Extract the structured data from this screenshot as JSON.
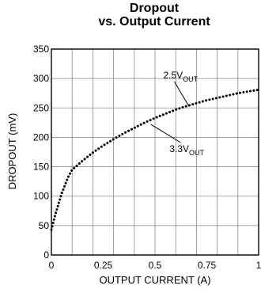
{
  "chart_data": {
    "type": "line",
    "title_line1": "Dropout",
    "title_line2": "vs. Output Current",
    "xlabel": "OUTPUT CURRENT (A)",
    "ylabel": "DROPOUT (mV)",
    "xlim": [
      0,
      1
    ],
    "ylim": [
      0,
      350
    ],
    "xticks": [
      0,
      0.25,
      0.5,
      0.75,
      1
    ],
    "xtick_labels": [
      "0",
      "0.25",
      "0.5",
      "0.75",
      "1"
    ],
    "yticks": [
      0,
      50,
      100,
      150,
      200,
      250,
      300,
      350
    ],
    "ytick_labels": [
      "0",
      "50",
      "100",
      "150",
      "200",
      "250",
      "300",
      "350"
    ],
    "grid": true,
    "x_minor_divisions": 10,
    "series": [
      {
        "name": "",
        "style": "dotted",
        "x": [
          0,
          0.02,
          0.05,
          0.08,
          0.1,
          0.15,
          0.2,
          0.25,
          0.3,
          0.35,
          0.4,
          0.45,
          0.5,
          0.55,
          0.6,
          0.65,
          0.7,
          0.75,
          0.8,
          0.85,
          0.9,
          0.95,
          1.0
        ],
        "y": [
          43,
          70,
          105,
          132,
          145,
          160,
          174,
          186,
          197,
          207,
          216,
          225,
          233,
          240,
          247,
          253,
          258,
          263,
          267,
          271,
          275,
          278,
          281
        ]
      }
    ],
    "annotations": [
      {
        "base": "2.5V",
        "sub": "OUT",
        "x": 0.54,
        "y": 300,
        "leader_to": [
          0.66,
          255
        ]
      },
      {
        "base": "3.3V",
        "sub": "OUT",
        "x": 0.57,
        "y": 175,
        "leader_to": [
          0.48,
          222
        ]
      }
    ]
  }
}
